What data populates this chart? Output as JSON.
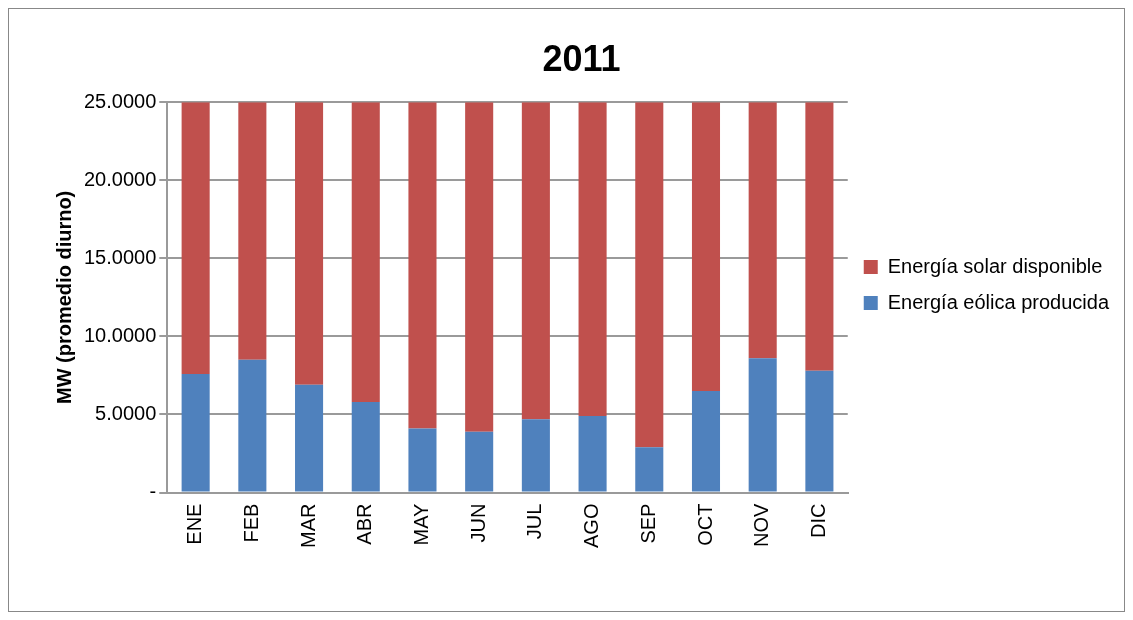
{
  "chart_data": {
    "type": "bar",
    "title": "2011",
    "ylabel": "MW (promedio diurno)",
    "stacked": true,
    "categories": [
      "ENE",
      "FEB",
      "MAR",
      "ABR",
      "MAY",
      "JUN",
      "JUL",
      "AGO",
      "SEP",
      "OCT",
      "NOV",
      "DIC"
    ],
    "series": [
      {
        "name": "Energía eólica producida",
        "color": "#4f81bd",
        "values": [
          7.6,
          8.5,
          6.9,
          5.8,
          4.1,
          3.9,
          4.7,
          4.9,
          2.9,
          6.5,
          8.6,
          7.8
        ]
      },
      {
        "name": "Energía solar disponible",
        "color": "#c0504d",
        "values": [
          17.4,
          16.5,
          18.1,
          19.2,
          20.9,
          21.1,
          20.3,
          20.1,
          22.1,
          18.5,
          16.4,
          17.2
        ]
      }
    ],
    "ylim": [
      0,
      25
    ],
    "yticks": [
      {
        "value": 0,
        "label": "-"
      },
      {
        "value": 5,
        "label": "5.0000"
      },
      {
        "value": 10,
        "label": "10.0000"
      },
      {
        "value": 15,
        "label": "15.0000"
      },
      {
        "value": 20,
        "label": "20.0000"
      },
      {
        "value": 25,
        "label": "25.0000"
      }
    ],
    "grid": "y",
    "legend": "right"
  }
}
